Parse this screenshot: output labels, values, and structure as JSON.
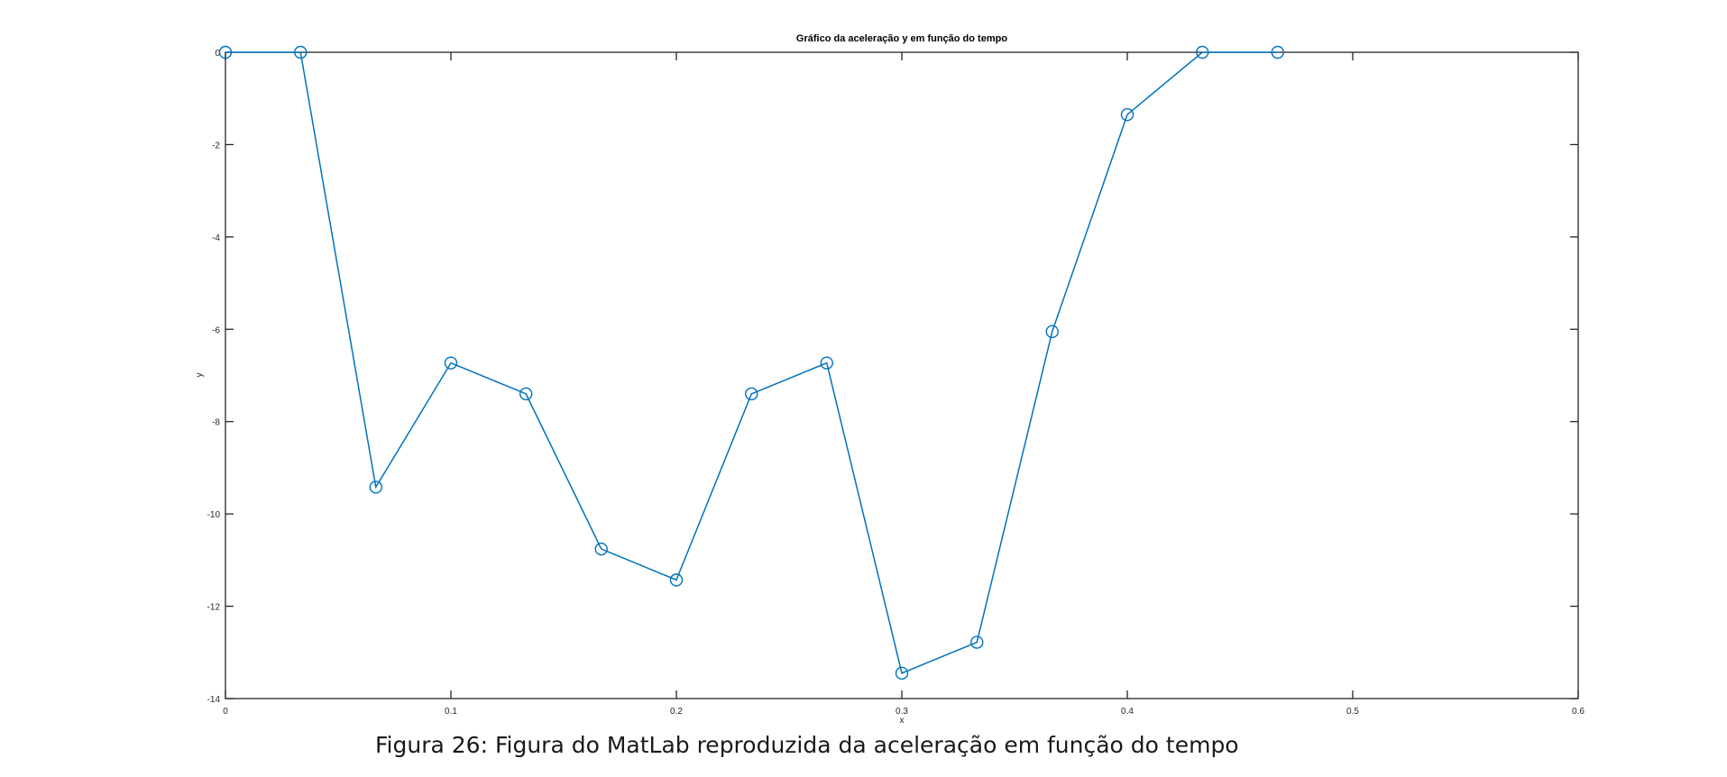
{
  "caption": "Figura 26: Figura do MatLab reproduzida da aceleração em função do tempo",
  "colors": {
    "series": "#0072BD",
    "axis": "#262626"
  },
  "chart_data": {
    "type": "line",
    "title": "Gráfico da aceleração y em função do tempo",
    "xlabel": "x",
    "ylabel": "y",
    "xlim": [
      0,
      0.6
    ],
    "ylim": [
      -14,
      0
    ],
    "xticks": [
      0,
      0.1,
      0.2,
      0.3,
      0.4,
      0.5,
      0.6
    ],
    "xtick_labels": [
      "0",
      "0.1",
      "0.2",
      "0.3",
      "0.4",
      "0.5",
      "0.6"
    ],
    "yticks": [
      0,
      -2,
      -4,
      -6,
      -8,
      -10,
      -12,
      -14
    ],
    "ytick_labels": [
      "0",
      "-2",
      "-4",
      "-6",
      "-8",
      "-10",
      "-12",
      "-14"
    ],
    "grid": false,
    "marker": "circle",
    "series": [
      {
        "x": [
          0,
          0.0333,
          0.0667,
          0.1,
          0.1333,
          0.1667,
          0.2,
          0.2333,
          0.2667,
          0.3,
          0.3333,
          0.3667,
          0.4,
          0.4333,
          0.4667
        ],
        "y": [
          0,
          0,
          -9.42,
          -6.73,
          -7.4,
          -10.76,
          -11.43,
          -7.4,
          -6.73,
          -13.45,
          -12.78,
          -6.05,
          -1.35,
          0,
          0
        ]
      }
    ]
  }
}
